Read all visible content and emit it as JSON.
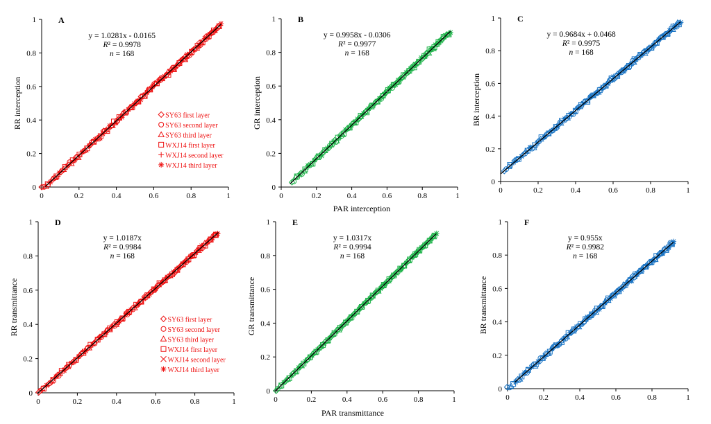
{
  "figure": {
    "x_label_top": "PAR interception",
    "x_label_bottom": "PAR transmittance"
  },
  "chart_data": [
    {
      "type": "scatter",
      "letter": "A",
      "color": "#ee1111",
      "ylabel": "RR interception",
      "xlim": [
        0,
        1
      ],
      "ylim": [
        0,
        1
      ],
      "xticks": [
        "0",
        "0.2",
        "0.4",
        "0.6",
        "0.8",
        "1"
      ],
      "yticks": [
        "0",
        "0.2",
        "0.4",
        "0.6",
        "0.8",
        "1"
      ],
      "xtick_values": [
        0,
        0.2,
        0.4,
        0.6,
        0.8,
        1
      ],
      "ytick_values": [
        0,
        0.2,
        0.4,
        0.6,
        0.8,
        1
      ],
      "fit": {
        "slope": 1.0281,
        "intercept": -0.0165,
        "x_range": [
          0.02,
          0.96
        ]
      },
      "equation": "y = 1.0281x - 0.0165",
      "r2_label": "R",
      "r2_value": "² = 0.9978",
      "n_label": "n",
      "n_value": " = 168",
      "data_range": [
        0.0,
        0.96
      ],
      "spread": 0.012,
      "legend": [
        {
          "marker": "diamond",
          "label": "SY63 first layer"
        },
        {
          "marker": "circle",
          "label": "SY63 second layer"
        },
        {
          "marker": "triangle",
          "label": "SY63 third layer"
        },
        {
          "marker": "square",
          "label": "WXJ14 first layer"
        },
        {
          "marker": "plus",
          "label": "WXJ14 second layer"
        },
        {
          "marker": "star",
          "label": "WXJ14 third layer"
        }
      ]
    },
    {
      "type": "scatter",
      "letter": "B",
      "color": "#1fb34a",
      "ylabel": "GR interception",
      "xlim": [
        0,
        1
      ],
      "ylim": [
        0,
        1
      ],
      "xticks": [
        "0",
        "0.2",
        "0.4",
        "0.6",
        "0.8",
        "1"
      ],
      "yticks": [
        "0",
        "0.2",
        "0.4",
        "0.6",
        "0.8",
        "1"
      ],
      "xtick_values": [
        0,
        0.2,
        0.4,
        0.6,
        0.8,
        1
      ],
      "ytick_values": [
        0,
        0.2,
        0.4,
        0.6,
        0.8,
        1
      ],
      "fit": {
        "slope": 0.9958,
        "intercept": -0.0306,
        "x_range": [
          0.05,
          0.96
        ]
      },
      "equation": "y = 0.9958x - 0.0306",
      "r2_label": "R",
      "r2_value": "² = 0.9977",
      "n_label": "n",
      "n_value": " = 168",
      "data_range": [
        0.06,
        0.96
      ],
      "spread": 0.012,
      "legend": []
    },
    {
      "type": "scatter",
      "letter": "C",
      "color": "#1a74c4",
      "ylabel": "BR interception",
      "xlim": [
        0,
        1
      ],
      "ylim": [
        0,
        1
      ],
      "xticks": [
        "0",
        "0.2",
        "0.4",
        "0.6",
        "0.8",
        "1"
      ],
      "yticks": [
        "0",
        "0.2",
        "0.4",
        "0.6",
        "0.8",
        "1"
      ],
      "xtick_values": [
        0,
        0.2,
        0.4,
        0.6,
        0.8,
        1
      ],
      "ytick_values": [
        0,
        0.2,
        0.4,
        0.6,
        0.8,
        1
      ],
      "fit": {
        "slope": 0.9684,
        "intercept": 0.0468,
        "x_range": [
          0.0,
          0.96
        ]
      },
      "equation": "y = 0.9684x + 0.0468",
      "r2_label": "R",
      "r2_value": "² = 0.9975",
      "n_label": "n",
      "n_value": " = 168",
      "data_range": [
        0.02,
        0.96
      ],
      "spread": 0.013,
      "legend": []
    },
    {
      "type": "scatter",
      "letter": "D",
      "color": "#ee1111",
      "ylabel": "RR transmittance",
      "xlim": [
        0,
        1
      ],
      "ylim": [
        0,
        1
      ],
      "xticks": [
        "0",
        "0.2",
        "0.4",
        "0.6",
        "0.8",
        "1"
      ],
      "yticks": [
        "0",
        "0.2",
        "0.4",
        "0.6",
        "0.8",
        "1"
      ],
      "xtick_values": [
        0,
        0.2,
        0.4,
        0.6,
        0.8,
        1
      ],
      "ytick_values": [
        0,
        0.2,
        0.4,
        0.6,
        0.8,
        1
      ],
      "fit": {
        "slope": 1.0187,
        "intercept": 0,
        "x_range": [
          0.0,
          0.92
        ]
      },
      "equation": "y = 1.0187x",
      "r2_label": "R",
      "r2_value": "² = 0.9984",
      "n_label": "n",
      "n_value": " = 168",
      "data_range": [
        0.0,
        0.92
      ],
      "spread": 0.01,
      "legend": [
        {
          "marker": "diamond",
          "label": "SY63 first layer"
        },
        {
          "marker": "circle",
          "label": "SY63 second layer"
        },
        {
          "marker": "triangle",
          "label": "SY63 third layer"
        },
        {
          "marker": "square",
          "label": "WXJ14 first layer"
        },
        {
          "marker": "cross",
          "label": "WXJ14 second layer"
        },
        {
          "marker": "star",
          "label": "WXJ14 third layer"
        }
      ]
    },
    {
      "type": "scatter",
      "letter": "E",
      "color": "#1fb34a",
      "ylabel": "GR transmittance",
      "xlim": [
        0,
        1
      ],
      "ylim": [
        0,
        1
      ],
      "xticks": [
        "0",
        "0.2",
        "0.4",
        "0.6",
        "0.8",
        "1"
      ],
      "yticks": [
        "0",
        "0.2",
        "0.4",
        "0.6",
        "0.8",
        "1"
      ],
      "xtick_values": [
        0,
        0.2,
        0.4,
        0.6,
        0.8,
        1
      ],
      "ytick_values": [
        0,
        0.2,
        0.4,
        0.6,
        0.8,
        1
      ],
      "fit": {
        "slope": 1.0317,
        "intercept": 0,
        "x_range": [
          0.0,
          0.9
        ]
      },
      "equation": "y = 1.0317x",
      "r2_label": "R",
      "r2_value": "² = 0.9994",
      "n_label": "n",
      "n_value": " = 168",
      "data_range": [
        0.0,
        0.9
      ],
      "spread": 0.006,
      "legend": []
    },
    {
      "type": "scatter",
      "letter": "F",
      "color": "#1a74c4",
      "ylabel": "BR transmittance",
      "xlim": [
        0,
        1
      ],
      "ylim": [
        0,
        1
      ],
      "xticks": [
        "0",
        "0.2",
        "0.4",
        "0.6",
        "0.8",
        "1"
      ],
      "yticks": [
        "0",
        "0.2",
        "0.4",
        "0.6",
        "0.8",
        "1"
      ],
      "xtick_values": [
        0,
        0.2,
        0.4,
        0.6,
        0.8,
        1
      ],
      "ytick_values": [
        0,
        0.2,
        0.4,
        0.6,
        0.8,
        1
      ],
      "fit": {
        "slope": 0.955,
        "intercept": 0,
        "x_range": [
          0.04,
          0.92
        ]
      },
      "equation": "y = 0.955x",
      "r2_label": "R",
      "r2_value": "² = 0.9982",
      "n_label": "n",
      "n_value": " = 168",
      "data_range": [
        0.0,
        0.92
      ],
      "spread": 0.013,
      "legend": []
    }
  ]
}
